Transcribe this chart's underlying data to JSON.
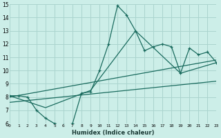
{
  "xlabel": "Humidex (Indice chaleur)",
  "bg_color": "#cceee8",
  "grid_color": "#aad4ce",
  "line_color": "#1a6b5e",
  "x_min": 0,
  "x_max": 23,
  "y_min": 6,
  "y_max": 15,
  "series1_x": [
    0,
    1,
    2,
    3,
    4,
    5,
    6,
    7,
    8,
    9,
    10,
    11,
    12,
    13,
    14,
    15,
    16,
    17,
    18,
    19,
    20,
    21,
    22,
    23
  ],
  "series1_y": [
    8.1,
    8.1,
    8.0,
    7.0,
    6.4,
    6.0,
    5.9,
    6.0,
    8.3,
    8.4,
    10.0,
    12.0,
    14.9,
    14.2,
    13.0,
    11.5,
    11.8,
    12.0,
    11.8,
    9.8,
    11.7,
    11.2,
    11.4,
    10.6
  ],
  "series2_x": [
    0,
    4,
    9,
    14,
    19,
    23
  ],
  "series2_y": [
    8.1,
    7.2,
    8.5,
    13.0,
    9.8,
    10.6
  ],
  "series3_x": [
    0,
    23
  ],
  "series3_y": [
    8.0,
    10.8
  ],
  "series4_x": [
    0,
    23
  ],
  "series4_y": [
    7.6,
    9.2
  ],
  "yticks": [
    6,
    7,
    8,
    9,
    10,
    11,
    12,
    13,
    14,
    15
  ],
  "xticks": [
    0,
    1,
    2,
    3,
    4,
    5,
    6,
    7,
    8,
    9,
    10,
    11,
    12,
    13,
    14,
    15,
    16,
    17,
    18,
    19,
    20,
    21,
    22,
    23
  ]
}
